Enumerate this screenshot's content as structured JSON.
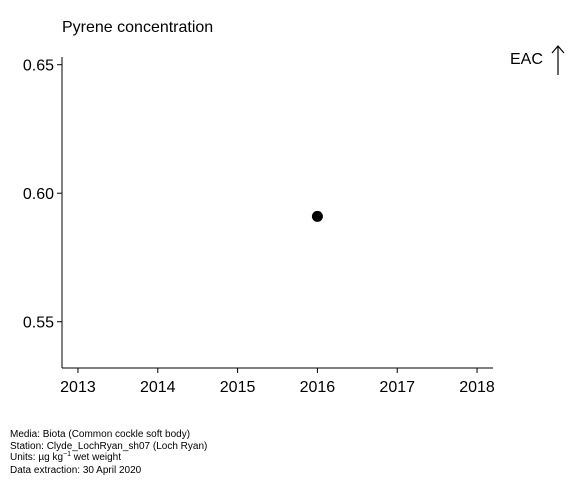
{
  "chart_data": {
    "type": "scatter",
    "title": "Pyrene concentration",
    "xlabel": "",
    "ylabel": "",
    "xlim": [
      2012.8,
      2018.2
    ],
    "ylim": [
      0.532,
      0.653
    ],
    "x_ticks": [
      "2013",
      "2014",
      "2015",
      "2016",
      "2017",
      "2018"
    ],
    "y_ticks": [
      "0.55",
      "0.60",
      "0.65"
    ],
    "points": [
      {
        "x": 2016,
        "y": 0.591
      }
    ],
    "annotation": "EAC",
    "grid": false
  },
  "footer": {
    "media": "Media: Biota (Common cockle soft body)",
    "station": "Station: Clyde_LochRyan_sh07 (Loch Ryan)",
    "units_prefix": "Units:  µg kg",
    "units_sup": "−1",
    "units_suffix": " wet weight",
    "extraction": "Data extraction: 30 April 2020"
  },
  "colors": {
    "point": "#000000",
    "axis": "#000000",
    "background": "#ffffff"
  }
}
